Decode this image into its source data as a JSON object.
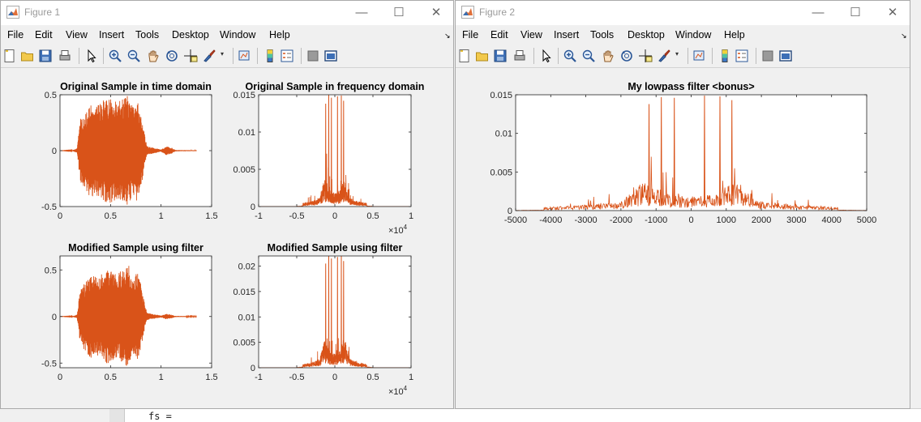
{
  "background": {
    "command_text": "fs ="
  },
  "colors": {
    "signal": "#d95319",
    "axes_bg": "#ffffff",
    "figure_bg": "#f0f0f0"
  },
  "window_controls": {
    "minimize": "—",
    "maximize": "☐",
    "close": "✕"
  },
  "fig1": {
    "title": "Figure 1",
    "menus": [
      "File",
      "Edit",
      "View",
      "Insert",
      "Tools",
      "Desktop",
      "Window",
      "Help"
    ],
    "dock_arrow": "↘",
    "toolbar_icons": [
      "new-figure-icon",
      "open-file-icon",
      "save-icon",
      "print-icon",
      "pointer-icon",
      "zoom-in-icon",
      "zoom-out-icon",
      "pan-icon",
      "rotate-3d-icon",
      "data-cursor-icon",
      "brush-icon",
      "link-plot-icon",
      "colorbar-icon",
      "legend-icon",
      "hide-plot-tools-icon",
      "show-plot-tools-icon"
    ]
  },
  "fig2": {
    "title": "Figure 2",
    "menus": [
      "File",
      "Edit",
      "View",
      "Insert",
      "Tools",
      "Desktop",
      "Window",
      "Help"
    ],
    "dock_arrow": "↘",
    "toolbar_icons": [
      "new-figure-icon",
      "open-file-icon",
      "save-icon",
      "print-icon",
      "pointer-icon",
      "zoom-in-icon",
      "zoom-out-icon",
      "pan-icon",
      "rotate-3d-icon",
      "data-cursor-icon",
      "brush-icon",
      "link-plot-icon",
      "colorbar-icon",
      "legend-icon",
      "hide-plot-tools-icon",
      "show-plot-tools-icon"
    ]
  },
  "chart_data": [
    {
      "id": "f1-time-orig",
      "type": "area",
      "signal": "time",
      "title": "Original Sample in time domain",
      "xlim": [
        0,
        1.5
      ],
      "ylim": [
        -0.5,
        0.5
      ],
      "xticks": [
        0,
        0.5,
        1,
        1.5
      ],
      "xtick_labels": [
        "0",
        "0.5",
        "1",
        "1.5"
      ],
      "yticks": [
        -0.5,
        0,
        0.5
      ],
      "ytick_labels": [
        "-0.5",
        "0",
        "0.5"
      ],
      "exp_label": "",
      "envelope": [
        [
          0,
          0
        ],
        [
          0.12,
          0.003
        ],
        [
          0.17,
          0.02
        ],
        [
          0.2,
          0.28
        ],
        [
          0.24,
          0.33
        ],
        [
          0.3,
          0.42
        ],
        [
          0.36,
          0.4
        ],
        [
          0.42,
          0.45
        ],
        [
          0.48,
          0.48
        ],
        [
          0.55,
          0.44
        ],
        [
          0.62,
          0.47
        ],
        [
          0.68,
          0.5
        ],
        [
          0.72,
          0.38
        ],
        [
          0.76,
          0.46
        ],
        [
          0.8,
          0.34
        ],
        [
          0.83,
          0.18
        ],
        [
          0.86,
          0.04
        ],
        [
          0.95,
          0.02
        ],
        [
          1.0,
          0.01
        ],
        [
          1.05,
          0.04
        ],
        [
          1.1,
          0.03
        ],
        [
          1.14,
          0.006
        ],
        [
          1.3,
          0.004
        ]
      ]
    },
    {
      "id": "f1-freq-orig",
      "type": "line",
      "signal": "spectrum",
      "title": "Original Sample in frequency domain",
      "xlim": [
        -10000,
        10000
      ],
      "ylim": [
        0,
        0.015
      ],
      "xticks": [
        -10000,
        -5000,
        0,
        5000,
        10000
      ],
      "xtick_labels": [
        "-1",
        "-0.5",
        "0",
        "0.5",
        "1"
      ],
      "yticks": [
        0,
        0.005,
        0.01,
        0.015
      ],
      "ytick_labels": [
        "0",
        "0.005",
        "0.01",
        "0.015"
      ],
      "exp_label": "×10^4",
      "peaks": [
        [
          -1200,
          0.0138
        ],
        [
          -800,
          0.015
        ],
        [
          -450,
          0.0146
        ],
        [
          350,
          0.0148
        ],
        [
          850,
          0.0149
        ],
        [
          1150,
          0.0142
        ]
      ]
    },
    {
      "id": "f1-time-mod",
      "type": "area",
      "signal": "time",
      "title": "Modified Sample using filter",
      "xlim": [
        0,
        1.5
      ],
      "ylim": [
        -0.55,
        0.65
      ],
      "xticks": [
        0,
        0.5,
        1,
        1.5
      ],
      "xtick_labels": [
        "0",
        "0.5",
        "1",
        "1.5"
      ],
      "yticks": [
        -0.5,
        0,
        0.5
      ],
      "ytick_labels": [
        "-0.5",
        "0",
        "0.5"
      ],
      "exp_label": "",
      "envelope": [
        [
          0,
          0
        ],
        [
          0.12,
          0.003
        ],
        [
          0.17,
          0.02
        ],
        [
          0.2,
          0.3
        ],
        [
          0.24,
          0.36
        ],
        [
          0.3,
          0.45
        ],
        [
          0.36,
          0.42
        ],
        [
          0.42,
          0.48
        ],
        [
          0.48,
          0.52
        ],
        [
          0.55,
          0.47
        ],
        [
          0.62,
          0.5
        ],
        [
          0.68,
          0.55
        ],
        [
          0.72,
          0.4
        ],
        [
          0.76,
          0.5
        ],
        [
          0.8,
          0.36
        ],
        [
          0.83,
          0.18
        ],
        [
          0.86,
          0.04
        ],
        [
          0.95,
          0.02
        ],
        [
          1.0,
          0.01
        ],
        [
          1.05,
          0.03
        ],
        [
          1.1,
          0.02
        ],
        [
          1.14,
          0.006
        ],
        [
          1.3,
          0.004
        ]
      ]
    },
    {
      "id": "f1-freq-mod",
      "type": "line",
      "signal": "spectrum",
      "title": "Modified Sample using filter",
      "xlim": [
        -10000,
        10000
      ],
      "ylim": [
        0,
        0.022
      ],
      "xticks": [
        -10000,
        -5000,
        0,
        5000,
        10000
      ],
      "xtick_labels": [
        "-1",
        "-0.5",
        "0",
        "0.5",
        "1"
      ],
      "yticks": [
        0,
        0.005,
        0.01,
        0.015,
        0.02
      ],
      "ytick_labels": [
        "0",
        "0.005",
        "0.01",
        "0.015",
        "0.02"
      ],
      "exp_label": "×10^4",
      "peaks": [
        [
          -1200,
          0.0205
        ],
        [
          -800,
          0.022
        ],
        [
          -450,
          0.0215
        ],
        [
          350,
          0.0218
        ],
        [
          850,
          0.022
        ],
        [
          1150,
          0.021
        ]
      ]
    },
    {
      "id": "f2-lowpass",
      "type": "line",
      "signal": "spectrum",
      "title": "My lowpass filter <bonus>",
      "xlim": [
        -5000,
        5000
      ],
      "ylim": [
        0,
        0.015
      ],
      "xticks": [
        -5000,
        -4000,
        -3000,
        -2000,
        -1000,
        0,
        1000,
        2000,
        3000,
        4000,
        5000
      ],
      "xtick_labels": [
        "-5000",
        "-4000",
        "-3000",
        "-2000",
        "-1000",
        "0",
        "1000",
        "2000",
        "3000",
        "4000",
        "5000"
      ],
      "yticks": [
        0,
        0.005,
        0.01,
        0.015
      ],
      "ytick_labels": [
        "0",
        "0.005",
        "0.01",
        "0.015"
      ],
      "exp_label": "",
      "peaks": [
        [
          -1200,
          0.0138
        ],
        [
          -850,
          0.0147
        ],
        [
          -480,
          0.0146
        ],
        [
          380,
          0.0149
        ],
        [
          820,
          0.0148
        ],
        [
          1160,
          0.0143
        ]
      ]
    }
  ]
}
